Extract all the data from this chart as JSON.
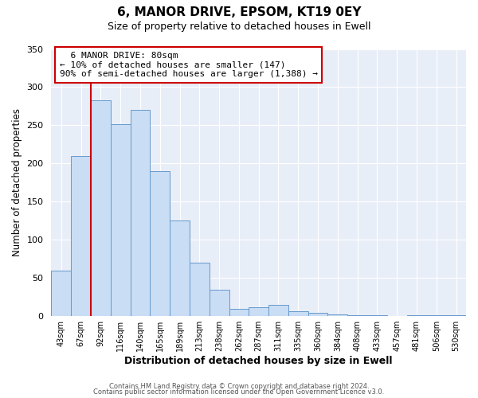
{
  "title": "6, MANOR DRIVE, EPSOM, KT19 0EY",
  "subtitle": "Size of property relative to detached houses in Ewell",
  "xlabel": "Distribution of detached houses by size in Ewell",
  "ylabel": "Number of detached properties",
  "bin_labels": [
    "43sqm",
    "67sqm",
    "92sqm",
    "116sqm",
    "140sqm",
    "165sqm",
    "189sqm",
    "213sqm",
    "238sqm",
    "262sqm",
    "287sqm",
    "311sqm",
    "335sqm",
    "360sqm",
    "384sqm",
    "408sqm",
    "433sqm",
    "457sqm",
    "481sqm",
    "506sqm",
    "530sqm"
  ],
  "bar_heights": [
    60,
    210,
    283,
    251,
    270,
    190,
    125,
    70,
    35,
    10,
    12,
    15,
    6,
    4,
    2,
    1,
    1,
    0,
    1,
    1,
    1
  ],
  "bar_color": "#c9ddf5",
  "bar_edge_color": "#6699cc",
  "vline_color": "#cc0000",
  "annotation_title": "6 MANOR DRIVE: 80sqm",
  "annotation_line1": "← 10% of detached houses are smaller (147)",
  "annotation_line2": "90% of semi-detached houses are larger (1,388) →",
  "annotation_box_color": "#cc0000",
  "ylim": [
    0,
    350
  ],
  "yticks": [
    0,
    50,
    100,
    150,
    200,
    250,
    300,
    350
  ],
  "footer1": "Contains HM Land Registry data © Crown copyright and database right 2024.",
  "footer2": "Contains public sector information licensed under the Open Government Licence v3.0.",
  "bg_color": "#ffffff",
  "plot_bg_color": "#e8eef8",
  "grid_color": "#ffffff"
}
